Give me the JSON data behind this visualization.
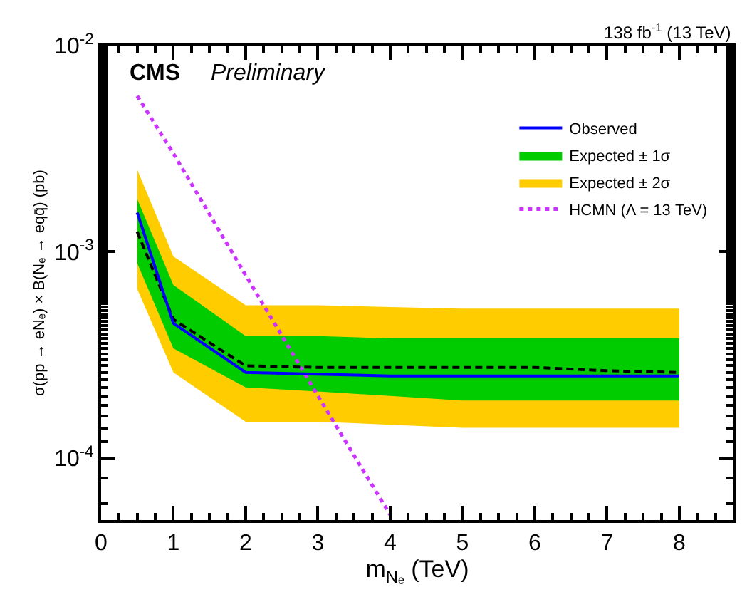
{
  "chart_data": {
    "type": "line",
    "title": "138 fb$^{-1}$ (13 TeV)",
    "xlabel": "m$_{Nₑ}$ (TeV)",
    "ylabel": "σ(pp → eNₑ) × B(Nₑ → eqq̄) (pb)",
    "annotations": [
      "CMS",
      "Preliminary"
    ],
    "x": [
      0.5,
      1,
      2,
      3,
      4,
      5,
      6,
      7,
      8
    ],
    "series": [
      {
        "name": "Observed",
        "color": "#0000ff",
        "line_style": "solid",
        "values": [
          0.00155,
          0.00045,
          0.00026,
          0.000255,
          0.00025,
          0.00025,
          0.00025,
          0.00025,
          0.00025
        ]
      },
      {
        "color": "#000000",
        "line_style": "dashed",
        "values": [
          0.00125,
          0.00047,
          0.00028,
          0.000275,
          0.000275,
          0.000275,
          0.000275,
          0.000265,
          0.00026
        ]
      },
      {
        "name": "Expected ± 1σ",
        "color": "#00cc00",
        "values": [
          null,
          null,
          null,
          null,
          null,
          null,
          null,
          null,
          null
        ],
        "lower": [
          0.00088,
          0.00034,
          0.00022,
          0.00021,
          0.0002,
          0.00019,
          0.00019,
          0.00019,
          0.00019
        ],
        "upper": [
          0.0018,
          0.00069,
          0.00039,
          0.00039,
          0.00038,
          0.00038,
          0.00038,
          0.00038,
          0.00038
        ]
      },
      {
        "name": "Expected ± 2σ",
        "color": "#ffcc00",
        "values": [
          null,
          null,
          null,
          null,
          null,
          null,
          null,
          null,
          null
        ],
        "lower": [
          0.00066,
          0.00026,
          0.00015,
          0.00015,
          0.000145,
          0.00014,
          0.00014,
          0.00014,
          0.00014
        ],
        "upper": [
          0.0025,
          0.00095,
          0.00055,
          0.00055,
          0.00054,
          0.00053,
          0.00053,
          0.00053,
          0.00053
        ]
      },
      {
        "name": "HCMN (Λ = 13 TeV)",
        "color": "#cc33ff",
        "line_style": "dotted",
        "x": [
          0.5,
          1,
          2,
          3,
          4
        ],
        "values": [
          0.0057,
          0.003,
          0.00077,
          0.0002,
          5.3e-05
        ]
      }
    ],
    "xlim": [
      0,
      8.75
    ],
    "xticks": [
      0,
      1,
      2,
      3,
      4,
      5,
      6,
      7,
      8
    ],
    "ylim": [
      5e-05,
      0.01
    ],
    "log": true,
    "yticks": [
      {
        "value": 0.0001,
        "label": "10$^{-4}$"
      },
      {
        "value": 0.001,
        "label": "10$^{-3}$"
      },
      {
        "value": 0.01,
        "label": "10$^{-2}$"
      }
    ],
    "legend": "top right"
  }
}
